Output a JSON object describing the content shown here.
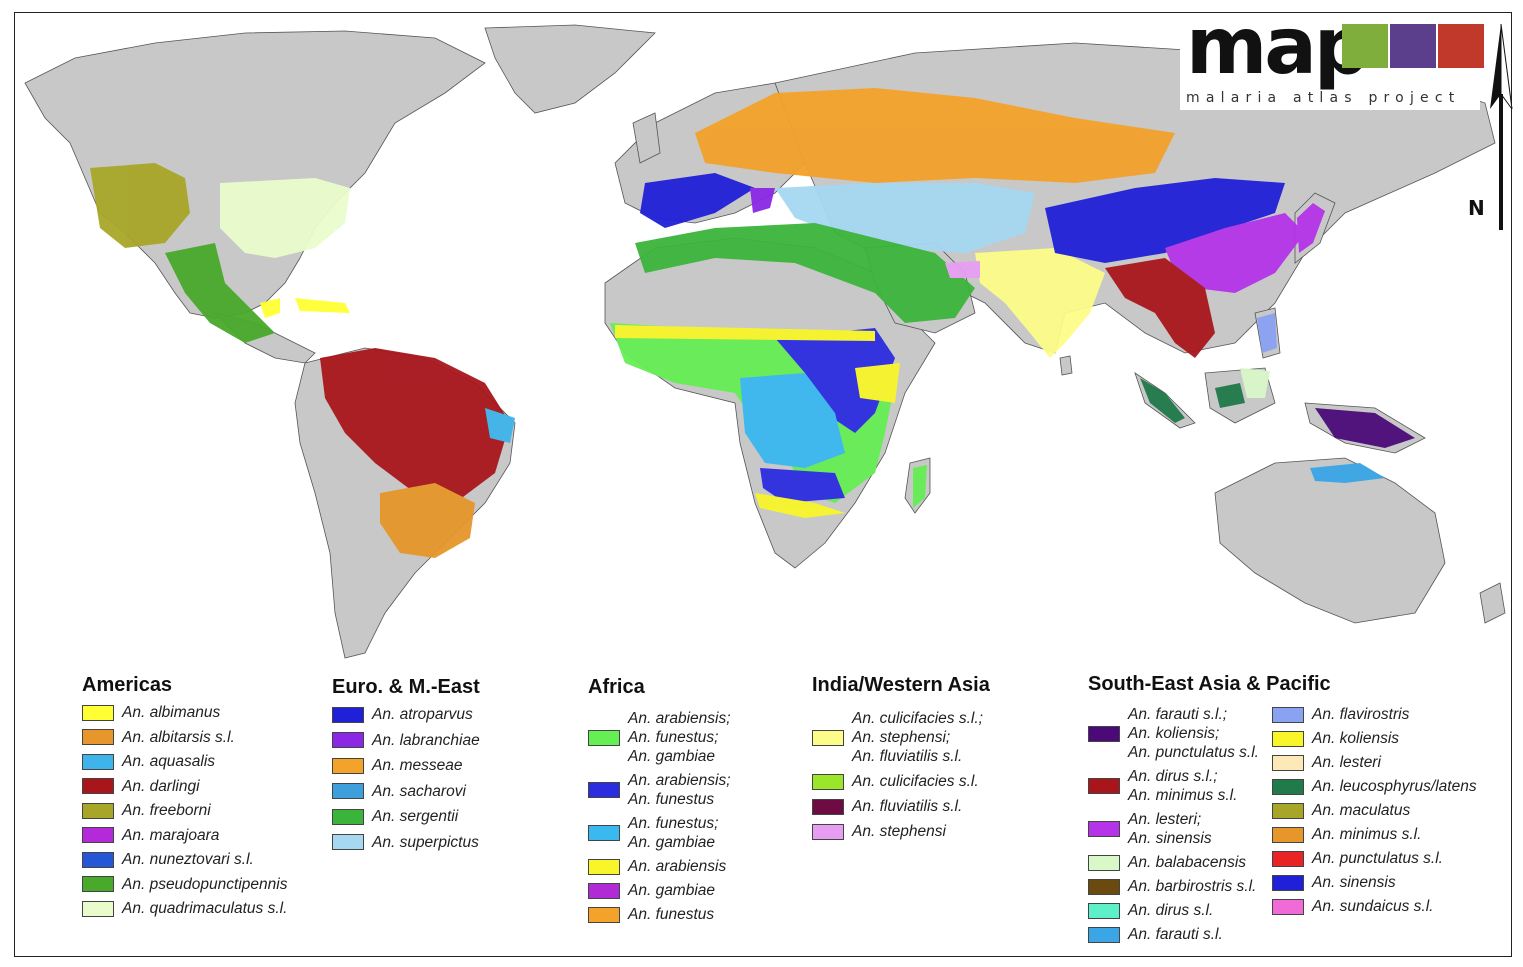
{
  "logo": {
    "word": "map",
    "subtitle": "malaria atlas project",
    "tile_colors": [
      "#7fae3c",
      "#5b3f8c",
      "#c0392b"
    ]
  },
  "north_label": "N",
  "map_colors": {
    "land": "#c8c8c8",
    "ocean": "#ffffff",
    "coast": "#555555"
  },
  "legend": {
    "americas": {
      "title": "Americas",
      "items": [
        {
          "label": "An. albimanus",
          "color": "#ffff33"
        },
        {
          "label": "An. albitarsis s.l.",
          "color": "#e6962a"
        },
        {
          "label": "An. aquasalis",
          "color": "#3fb4ea"
        },
        {
          "label": "An. darlingi",
          "color": "#a8161c"
        },
        {
          "label": "An. freeborni",
          "color": "#a8a628"
        },
        {
          "label": "An. marajoara",
          "color": "#b52ad8"
        },
        {
          "label": "An. nuneztovari s.l.",
          "color": "#2456d6"
        },
        {
          "label": "An. pseudopunctipennis",
          "color": "#48a92a"
        },
        {
          "label": "An. quadrimaculatus s.l.",
          "color": "#eafccc"
        }
      ]
    },
    "euro": {
      "title": "Euro. & M.-East",
      "items": [
        {
          "label": "An. atroparvus",
          "color": "#2020d8"
        },
        {
          "label": "An. labranchiae",
          "color": "#8a28e6"
        },
        {
          "label": "An. messeae",
          "color": "#f3a22a"
        },
        {
          "label": "An. sacharovi",
          "color": "#3d9fdc"
        },
        {
          "label": "An. sergentii",
          "color": "#3bb43b"
        },
        {
          "label": "An. superpictus",
          "color": "#a6d8f2"
        }
      ]
    },
    "africa": {
      "title": "Africa",
      "items": [
        {
          "lines": [
            "An. arabiensis;",
            "An. funestus;",
            "An. gambiae"
          ],
          "color": "#66ee55"
        },
        {
          "lines": [
            "An. arabiensis;",
            "An. funestus"
          ],
          "color": "#2d2de0"
        },
        {
          "lines": [
            "An. funestus;",
            "An. gambiae"
          ],
          "color": "#3ab8f0"
        },
        {
          "lines": [
            "An. arabiensis"
          ],
          "color": "#f8f52a"
        },
        {
          "lines": [
            "An. gambiae"
          ],
          "color": "#b02ad6"
        },
        {
          "lines": [
            "An. funestus"
          ],
          "color": "#f3a22a"
        }
      ]
    },
    "india": {
      "title": "India/Western Asia",
      "items": [
        {
          "lines": [
            "An. culicifacies s.l.;",
            "An. stephensi;",
            "An. fluviatilis s.l."
          ],
          "color": "#fdfc88"
        },
        {
          "lines": [
            "An. culicifacies s.l."
          ],
          "color": "#9be62a"
        },
        {
          "lines": [
            "An. fluviatilis s.l."
          ],
          "color": "#6e0b42"
        },
        {
          "lines": [
            "An. stephensi"
          ],
          "color": "#e79ef2"
        }
      ]
    },
    "sea": {
      "title": "South-East Asia & Pacific",
      "items_left": [
        {
          "lines": [
            "An. farauti s.l.;",
            "An. koliensis;",
            "An. punctulatus s.l."
          ],
          "color": "#4b0a78"
        },
        {
          "lines": [
            "An. dirus s.l.;",
            "An. minimus s.l."
          ],
          "color": "#a8161c"
        },
        {
          "lines": [
            "An. lesteri;",
            "An. sinensis"
          ],
          "color": "#b534e8"
        },
        {
          "lines": [
            "An. balabacensis"
          ],
          "color": "#d8f8c8"
        },
        {
          "lines": [
            "An. barbirostris s.l."
          ],
          "color": "#6b4a10"
        },
        {
          "lines": [
            "An. dirus s.l."
          ],
          "color": "#5ef0c8"
        },
        {
          "lines": [
            "An. farauti s.l."
          ],
          "color": "#3aa6e6"
        }
      ],
      "items_right": [
        {
          "lines": [
            "An. flavirostris"
          ],
          "color": "#8aa2f2"
        },
        {
          "lines": [
            "An. koliensis"
          ],
          "color": "#f8f52a"
        },
        {
          "lines": [
            "An. lesteri"
          ],
          "color": "#fde8b8"
        },
        {
          "lines": [
            "An. leucosphyrus/latens"
          ],
          "color": "#207a4a"
        },
        {
          "lines": [
            "An. maculatus"
          ],
          "color": "#a8a628"
        },
        {
          "lines": [
            "An. minimus s.l."
          ],
          "color": "#e6962a"
        },
        {
          "lines": [
            "An. punctulatus s.l."
          ],
          "color": "#e82424"
        },
        {
          "lines": [
            "An. sinensis"
          ],
          "color": "#2020d8"
        },
        {
          "lines": [
            "An. sundaicus s.l."
          ],
          "color": "#f06ad8"
        }
      ]
    }
  }
}
